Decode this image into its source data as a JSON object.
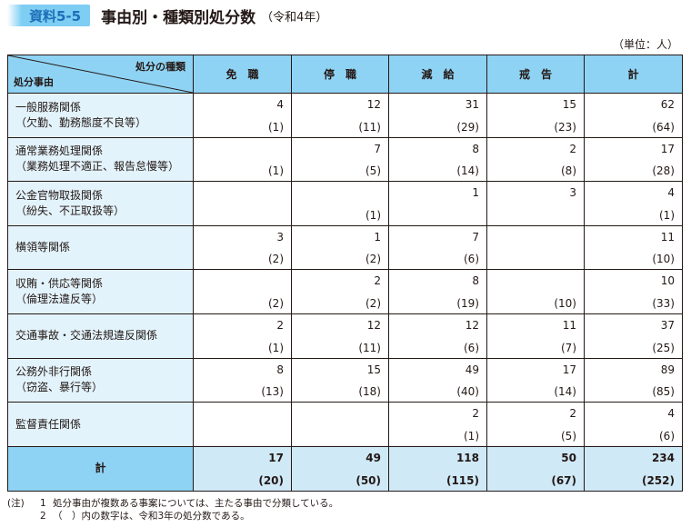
{
  "header": {
    "badge": "資料5-5",
    "title": "事由別・種類別処分数",
    "subtitle": "（令和4年）"
  },
  "unit": "（単位：人）",
  "table": {
    "corner_type": "処分の種類",
    "corner_reason": "処分事由",
    "columns": [
      "免　職",
      "停　職",
      "減　給",
      "戒　告",
      "計"
    ],
    "rows": [
      {
        "reason_lines": [
          "一般服務関係",
          "（欠勤、勤務態度不良等）"
        ],
        "cells": [
          {
            "cur": "4",
            "prev": "(1)"
          },
          {
            "cur": "12",
            "prev": "(11)"
          },
          {
            "cur": "31",
            "prev": "(29)"
          },
          {
            "cur": "15",
            "prev": "(23)"
          },
          {
            "cur": "62",
            "prev": "(64)"
          }
        ]
      },
      {
        "reason_lines": [
          "通常業務処理関係",
          "（業務処理不適正、報告怠慢等）"
        ],
        "cells": [
          {
            "cur": "",
            "prev": "(1)"
          },
          {
            "cur": "7",
            "prev": "(5)"
          },
          {
            "cur": "8",
            "prev": "(14)"
          },
          {
            "cur": "2",
            "prev": "(8)"
          },
          {
            "cur": "17",
            "prev": "(28)"
          }
        ]
      },
      {
        "reason_lines": [
          "公金官物取扱関係",
          "（紛失、不正取扱等）"
        ],
        "cells": [
          {
            "cur": "",
            "prev": ""
          },
          {
            "cur": "",
            "prev": "(1)"
          },
          {
            "cur": "1",
            "prev": ""
          },
          {
            "cur": "3",
            "prev": ""
          },
          {
            "cur": "4",
            "prev": "(1)"
          }
        ]
      },
      {
        "reason_lines": [
          "横領等関係"
        ],
        "cells": [
          {
            "cur": "3",
            "prev": "(2)"
          },
          {
            "cur": "1",
            "prev": "(2)"
          },
          {
            "cur": "7",
            "prev": "(6)"
          },
          {
            "cur": "",
            "prev": ""
          },
          {
            "cur": "11",
            "prev": "(10)"
          }
        ]
      },
      {
        "reason_lines": [
          "収賄・供応等関係",
          "（倫理法違反等）"
        ],
        "cells": [
          {
            "cur": "",
            "prev": "(2)"
          },
          {
            "cur": "2",
            "prev": "(2)"
          },
          {
            "cur": "8",
            "prev": "(19)"
          },
          {
            "cur": "",
            "prev": "(10)"
          },
          {
            "cur": "10",
            "prev": "(33)"
          }
        ]
      },
      {
        "reason_lines": [
          "交通事故・交通法規違反関係"
        ],
        "cells": [
          {
            "cur": "2",
            "prev": "(1)"
          },
          {
            "cur": "12",
            "prev": "(11)"
          },
          {
            "cur": "12",
            "prev": "(6)"
          },
          {
            "cur": "11",
            "prev": "(7)"
          },
          {
            "cur": "37",
            "prev": "(25)"
          }
        ]
      },
      {
        "reason_lines": [
          "公務外非行関係",
          "（窃盗、暴行等）"
        ],
        "cells": [
          {
            "cur": "8",
            "prev": "(13)"
          },
          {
            "cur": "15",
            "prev": "(18)"
          },
          {
            "cur": "49",
            "prev": "(40)"
          },
          {
            "cur": "17",
            "prev": "(14)"
          },
          {
            "cur": "89",
            "prev": "(85)"
          }
        ]
      },
      {
        "reason_lines": [
          "監督責任関係"
        ],
        "cells": [
          {
            "cur": "",
            "prev": ""
          },
          {
            "cur": "",
            "prev": ""
          },
          {
            "cur": "2",
            "prev": "(1)"
          },
          {
            "cur": "2",
            "prev": "(5)"
          },
          {
            "cur": "4",
            "prev": "(6)"
          }
        ]
      }
    ],
    "total": {
      "label": "計",
      "cells": [
        {
          "cur": "17",
          "prev": "(20)"
        },
        {
          "cur": "49",
          "prev": "(50)"
        },
        {
          "cur": "118",
          "prev": "(115)"
        },
        {
          "cur": "50",
          "prev": "(67)"
        },
        {
          "cur": "234",
          "prev": "(252)"
        }
      ]
    }
  },
  "notes": {
    "label": "(注)",
    "items": [
      {
        "idx": "1",
        "text": "処分事由が複数ある事案については、主たる事由で分類している。"
      },
      {
        "idx": "2",
        "text": "（　）内の数字は、令和3年の処分数である。"
      }
    ]
  },
  "colors": {
    "header_bg": "#8fd3f4",
    "reason_bg": "#e3f3fc",
    "total_bg": "#cfe9f7",
    "badge_bg": "#7ecef4",
    "badge_text": "#1d6fb8"
  }
}
